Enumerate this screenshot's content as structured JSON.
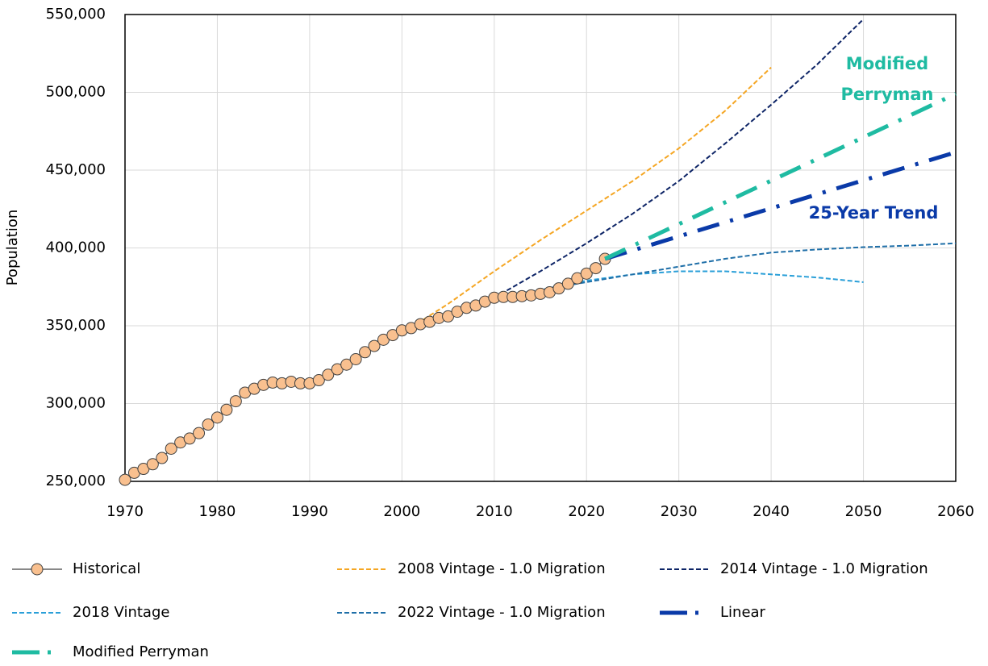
{
  "chart_data": {
    "type": "line",
    "y_label": "Population",
    "xlim": [
      1970,
      2060
    ],
    "xticks": [
      1970,
      1980,
      1990,
      2000,
      2010,
      2020,
      2030,
      2040,
      2050,
      2060
    ],
    "ylim": [
      250000,
      550000
    ],
    "yticks": [
      {
        "value": 250000,
        "label": "250,000"
      },
      {
        "value": 300000,
        "label": "300,000"
      },
      {
        "value": 350000,
        "label": "350,000"
      },
      {
        "value": 400000,
        "label": "400,000"
      },
      {
        "value": 450000,
        "label": "450,000"
      },
      {
        "value": 500000,
        "label": "500,000"
      },
      {
        "value": 550000,
        "label": "550,000"
      }
    ],
    "grid": true,
    "series": [
      {
        "name": "Historical",
        "color": "#404040",
        "marker_color": "#f9c08f",
        "style": "marker",
        "x": [
          1970,
          1971,
          1972,
          1973,
          1974,
          1975,
          1976,
          1977,
          1978,
          1979,
          1980,
          1981,
          1982,
          1983,
          1984,
          1985,
          1986,
          1987,
          1988,
          1989,
          1990,
          1991,
          1992,
          1993,
          1994,
          1995,
          1996,
          1997,
          1998,
          1999,
          2000,
          2001,
          2002,
          2003,
          2004,
          2005,
          2006,
          2007,
          2008,
          2009,
          2010,
          2011,
          2012,
          2013,
          2014,
          2015,
          2016,
          2017,
          2018,
          2019,
          2020,
          2021,
          2022
        ],
        "values": [
          251000,
          255500,
          258000,
          261000,
          265000,
          271000,
          275000,
          277500,
          281000,
          286500,
          291000,
          296000,
          301500,
          307000,
          309500,
          312000,
          313500,
          313000,
          314000,
          313000,
          313000,
          315000,
          318500,
          322000,
          325000,
          328500,
          333000,
          337000,
          341000,
          344000,
          347000,
          348500,
          351000,
          352500,
          355000,
          356000,
          359000,
          361500,
          363000,
          365500,
          368000,
          368500,
          368500,
          369000,
          369500,
          370500,
          371500,
          374000,
          377000,
          380500,
          383500,
          387000,
          393000
        ]
      },
      {
        "name": "2008 Vintage - 1.0 Migration",
        "color": "#f5a623",
        "style": "dashed",
        "x": [
          2001,
          2005,
          2010,
          2015,
          2020,
          2025,
          2030,
          2035,
          2040
        ],
        "values": [
          349000,
          364000,
          385000,
          405000,
          424000,
          443000,
          464000,
          488000,
          516000
        ]
      },
      {
        "name": "2014 Vintage - 1.0 Migration",
        "color": "#0d2466",
        "style": "dashed",
        "x": [
          2010,
          2015,
          2020,
          2025,
          2030,
          2035,
          2040,
          2045,
          2050
        ],
        "values": [
          368000,
          385000,
          403000,
          422000,
          443000,
          467000,
          492000,
          518000,
          547000
        ]
      },
      {
        "name": "2018 Vintage",
        "color": "#2a9fd8",
        "style": "dashed",
        "x": [
          2010,
          2015,
          2020,
          2025,
          2030,
          2035,
          2040,
          2045,
          2050
        ],
        "values": [
          368000,
          373000,
          379000,
          383000,
          385000,
          385000,
          383000,
          381000,
          378000
        ]
      },
      {
        "name": "2022 Vintage - 1.0 Migration",
        "color": "#1f6fa8",
        "style": "dashed",
        "x": [
          2010,
          2015,
          2020,
          2025,
          2030,
          2035,
          2040,
          2045,
          2050,
          2055,
          2060
        ],
        "values": [
          368000,
          373000,
          378000,
          383000,
          388000,
          393000,
          397000,
          399000,
          400500,
          401500,
          403000
        ]
      },
      {
        "name": "Linear",
        "color": "#0a3aa8",
        "style": "dash-dot",
        "x": [
          2022,
          2060
        ],
        "values": [
          393000,
          461500
        ]
      },
      {
        "name": "Modified Perryman",
        "color": "#1fbba2",
        "style": "dash-dot",
        "x": [
          2022,
          2060
        ],
        "values": [
          393000,
          499000
        ]
      }
    ],
    "annotations": [
      {
        "text": "Modified",
        "color": "#1fbba2"
      },
      {
        "text": "Perryman",
        "color": "#1fbba2"
      },
      {
        "text": "25-Year Trend",
        "color": "#0a3aa8"
      }
    ]
  }
}
